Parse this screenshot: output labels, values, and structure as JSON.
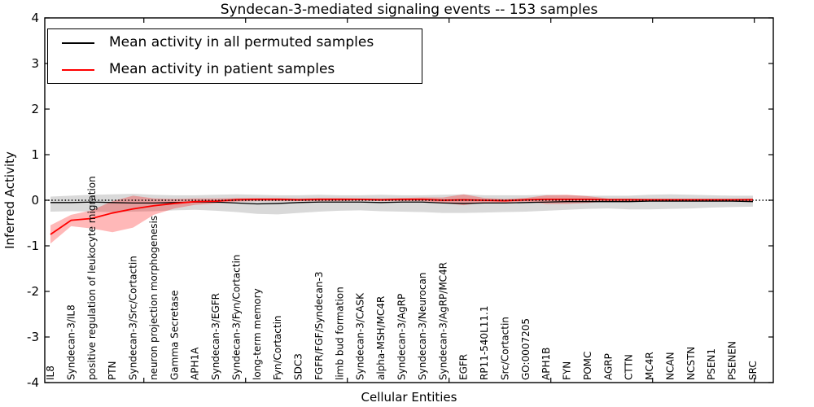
{
  "title": "Syndecan-3-mediated signaling events -- 153 samples",
  "legend": {
    "position": "upper left",
    "items": [
      {
        "label": "Mean activity in all permuted samples",
        "color": "#000000"
      },
      {
        "label": "Mean activity in patient samples",
        "color": "#ff0000"
      }
    ]
  },
  "chart_data": {
    "type": "line",
    "title": "Syndecan-3-mediated signaling events -- 153 samples",
    "xlabel": "Cellular Entities",
    "ylabel": "Inferred Activity",
    "ylim": [
      -4,
      4
    ],
    "yticks": [
      "4",
      "3",
      "2",
      "1",
      "0",
      "-1",
      "-2",
      "-3",
      "-4"
    ],
    "grid": false,
    "zero_line": "dotted",
    "categories": [
      "IL8",
      "Syndecan-3/IL8",
      "positive regulation of leukocyte migration",
      "PTN",
      "Syndecan-3/Src/Cortactin",
      "neuron projection morphogenesis",
      "Gamma Secretase",
      "APH1A",
      "Syndecan-3/EGFR",
      "Syndecan-3/Fyn/Cortactin",
      "long-term memory",
      "Fyn/Cortactin",
      "SDC3",
      "FGFR/FGF/Syndecan-3",
      "limb bud formation",
      "Syndecan-3/CASK",
      "alpha-MSH/MC4R",
      "Syndecan-3/AgRP",
      "Syndecan-3/Neurocan",
      "Syndecan-3/AgRP/MC4R",
      "EGFR",
      "RP11-540L11.1",
      "Src/Cortactin",
      "GO:0007205",
      "APH1B",
      "FYN",
      "POMC",
      "AGRP",
      "CTTN",
      "MC4R",
      "NCAN",
      "NCSTN",
      "PSEN1",
      "PSENEN",
      "SRC"
    ],
    "series": [
      {
        "name": "Mean activity in all permuted samples",
        "color": "#000000",
        "line_width": 1.3,
        "band_color": "rgba(0,0,0,0.15)",
        "values": [
          -0.05,
          -0.05,
          -0.04,
          -0.05,
          -0.06,
          -0.06,
          -0.05,
          -0.04,
          -0.04,
          -0.06,
          -0.08,
          -0.07,
          -0.05,
          -0.04,
          -0.04,
          -0.04,
          -0.05,
          -0.04,
          -0.04,
          -0.06,
          -0.07,
          -0.06,
          -0.06,
          -0.05,
          -0.04,
          -0.03,
          -0.03,
          -0.03,
          -0.03,
          -0.02,
          -0.02,
          -0.02,
          -0.02,
          -0.02,
          -0.03
        ],
        "band_upper": [
          0.08,
          0.1,
          0.12,
          0.13,
          0.14,
          0.12,
          0.11,
          0.11,
          0.12,
          0.13,
          0.12,
          0.11,
          0.11,
          0.12,
          0.11,
          0.11,
          0.12,
          0.11,
          0.11,
          0.12,
          0.13,
          0.11,
          0.11,
          0.11,
          0.12,
          0.11,
          0.1,
          0.1,
          0.1,
          0.12,
          0.13,
          0.12,
          0.11,
          0.1,
          0.1
        ],
        "band_lower": [
          -0.25,
          -0.24,
          -0.25,
          -0.26,
          -0.25,
          -0.24,
          -0.22,
          -0.21,
          -0.23,
          -0.26,
          -0.3,
          -0.31,
          -0.28,
          -0.25,
          -0.23,
          -0.22,
          -0.24,
          -0.25,
          -0.26,
          -0.28,
          -0.28,
          -0.27,
          -0.26,
          -0.25,
          -0.23,
          -0.21,
          -0.19,
          -0.18,
          -0.2,
          -0.2,
          -0.19,
          -0.18,
          -0.16,
          -0.15,
          -0.14
        ]
      },
      {
        "name": "Mean activity in patient samples",
        "color": "#ff0000",
        "line_width": 1.8,
        "band_color": "rgba(255,0,0,0.28)",
        "values": [
          -0.75,
          -0.44,
          -0.4,
          -0.28,
          -0.19,
          -0.12,
          -0.07,
          -0.03,
          -0.02,
          0.01,
          0.02,
          0.02,
          0.01,
          0.02,
          0.02,
          0.02,
          0.01,
          0.02,
          0.02,
          0.0,
          0.01,
          0.0,
          -0.01,
          0.01,
          0.02,
          0.02,
          0.02,
          0.01,
          0.01,
          0.01,
          0.01,
          0.01,
          0.01,
          0.01,
          0.01
        ],
        "band_upper": [
          -0.55,
          -0.32,
          -0.22,
          -0.02,
          0.1,
          0.04,
          0.03,
          0.04,
          0.04,
          0.05,
          0.05,
          0.05,
          0.04,
          0.05,
          0.05,
          0.04,
          0.04,
          0.05,
          0.06,
          0.06,
          0.13,
          0.05,
          0.03,
          0.05,
          0.11,
          0.12,
          0.09,
          0.04,
          0.04,
          0.03,
          0.03,
          0.03,
          0.03,
          0.03,
          0.04
        ],
        "band_lower": [
          -0.95,
          -0.57,
          -0.62,
          -0.7,
          -0.6,
          -0.32,
          -0.18,
          -0.1,
          -0.07,
          -0.03,
          -0.02,
          -0.02,
          -0.02,
          -0.02,
          -0.02,
          -0.01,
          -0.02,
          -0.02,
          -0.02,
          -0.06,
          -0.11,
          -0.05,
          -0.05,
          -0.03,
          -0.08,
          -0.08,
          -0.06,
          -0.02,
          -0.02,
          -0.01,
          -0.01,
          -0.01,
          -0.01,
          -0.01,
          -0.02
        ]
      }
    ]
  }
}
